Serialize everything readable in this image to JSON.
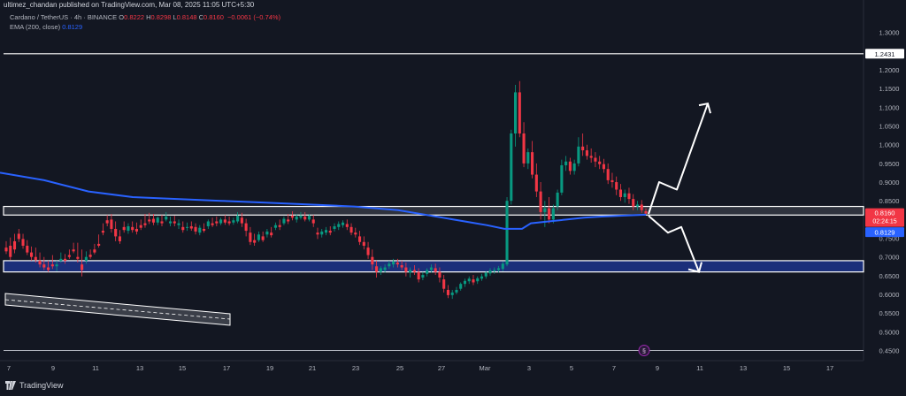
{
  "header": {
    "publisher_text": "ultimez_chandan published on TradingView.com, Mar 08, 2025 11:05 UTC+5:30"
  },
  "legend": {
    "symbol": "Cardano / TetherUS · 4h · BINANCE",
    "ohlc": [
      {
        "key": "O",
        "value": "0.8222"
      },
      {
        "key": "H",
        "value": "0.8298"
      },
      {
        "key": "L",
        "value": "0.8148"
      },
      {
        "key": "C",
        "value": "0.8160"
      }
    ],
    "change": "−0.0061 (−0.74%)",
    "ema_label": "EMA (200, close)",
    "ema_value": "0.8129"
  },
  "footer": {
    "brand": "TradingView"
  },
  "colors": {
    "background": "#131722",
    "up": "#089981",
    "down": "#f23645",
    "ema": "#2962ff",
    "zone_blue": "#1b2f7a",
    "white": "#ffffff"
  },
  "chart_data": {
    "type": "candlestick",
    "timeframe": "4h",
    "y_range": [
      0.43,
      1.33
    ],
    "y_ticks": [
      "1.3000",
      "1.2000",
      "1.1500",
      "1.1000",
      "1.0500",
      "1.0000",
      "0.9500",
      "0.9000",
      "0.8500",
      "0.7500",
      "0.7000",
      "0.6500",
      "0.6000",
      "0.5500",
      "0.5000",
      "0.4500"
    ],
    "x_ticks": [
      "7",
      "9",
      "11",
      "13",
      "15",
      "17",
      "19",
      "21",
      "23",
      "25",
      "27",
      "Mar",
      "3",
      "5",
      "7",
      "9",
      "11",
      "13",
      "15",
      "17"
    ],
    "price_labels": {
      "resistance_level": "1.2431",
      "last_price": "0.8160",
      "countdown": "02:24:15",
      "ema": "0.8129"
    },
    "levels": {
      "resistance": 1.2431,
      "bottom_line": 0.45,
      "supply_zone": [
        0.812,
        0.835
      ],
      "demand_zone": [
        0.66,
        0.69
      ]
    },
    "ema_path": [
      [
        0,
        0.925
      ],
      [
        50,
        0.905
      ],
      [
        100,
        0.875
      ],
      [
        150,
        0.86
      ],
      [
        200,
        0.855
      ],
      [
        250,
        0.85
      ],
      [
        300,
        0.845
      ],
      [
        350,
        0.84
      ],
      [
        400,
        0.835
      ],
      [
        450,
        0.825
      ],
      [
        500,
        0.805
      ],
      [
        550,
        0.785
      ],
      [
        570,
        0.775
      ],
      [
        590,
        0.775
      ],
      [
        600,
        0.79
      ],
      [
        620,
        0.795
      ],
      [
        640,
        0.8
      ],
      [
        660,
        0.805
      ],
      [
        680,
        0.808
      ],
      [
        700,
        0.81
      ],
      [
        730,
        0.8129
      ]
    ],
    "scenario_up": [
      [
        733,
        0.815
      ],
      [
        745,
        0.9
      ],
      [
        765,
        0.88
      ],
      [
        800,
        1.11
      ]
    ],
    "scenario_down": [
      [
        733,
        0.81
      ],
      [
        755,
        0.765
      ],
      [
        770,
        0.78
      ],
      [
        790,
        0.66
      ]
    ],
    "candles": [
      [
        0.725,
        0.742,
        0.715,
        0.708
      ],
      [
        0.73,
        0.752,
        0.7,
        0.692
      ],
      [
        0.742,
        0.762,
        0.72,
        0.71
      ],
      [
        0.762,
        0.775,
        0.748,
        0.74
      ],
      [
        0.748,
        0.762,
        0.73,
        0.722
      ],
      [
        0.73,
        0.745,
        0.712,
        0.705
      ],
      [
        0.712,
        0.728,
        0.7,
        0.69
      ],
      [
        0.7,
        0.725,
        0.692,
        0.685
      ],
      [
        0.69,
        0.712,
        0.68,
        0.672
      ],
      [
        0.68,
        0.7,
        0.672,
        0.665
      ],
      [
        0.672,
        0.69,
        0.665,
        0.66
      ],
      [
        0.68,
        0.705,
        0.675,
        0.668
      ],
      [
        0.675,
        0.69,
        0.68,
        0.662
      ],
      [
        0.69,
        0.712,
        0.695,
        0.685
      ],
      [
        0.695,
        0.708,
        0.69,
        0.682
      ],
      [
        0.705,
        0.72,
        0.7,
        0.695
      ],
      [
        0.72,
        0.738,
        0.715,
        0.71
      ],
      [
        0.7,
        0.738,
        0.695,
        0.685
      ],
      [
        0.68,
        0.72,
        0.665,
        0.648
      ],
      [
        0.69,
        0.715,
        0.7,
        0.682
      ],
      [
        0.706,
        0.72,
        0.7,
        0.695
      ],
      [
        0.72,
        0.735,
        0.712,
        0.707
      ],
      [
        0.735,
        0.76,
        0.73,
        0.725
      ],
      [
        0.77,
        0.79,
        0.765,
        0.758
      ],
      [
        0.798,
        0.812,
        0.79,
        0.782
      ],
      [
        0.8,
        0.815,
        0.775,
        0.765
      ],
      [
        0.775,
        0.795,
        0.755,
        0.742
      ],
      [
        0.755,
        0.772,
        0.742,
        0.735
      ],
      [
        0.78,
        0.795,
        0.772,
        0.765
      ],
      [
        0.77,
        0.79,
        0.782,
        0.762
      ],
      [
        0.78,
        0.795,
        0.772,
        0.765
      ],
      [
        0.775,
        0.792,
        0.768,
        0.76
      ],
      [
        0.785,
        0.8,
        0.778,
        0.772
      ],
      [
        0.79,
        0.815,
        0.785,
        0.778
      ],
      [
        0.8,
        0.818,
        0.795,
        0.788
      ],
      [
        0.802,
        0.815,
        0.792,
        0.785
      ],
      [
        0.792,
        0.808,
        0.805,
        0.785
      ],
      [
        0.795,
        0.812,
        0.79,
        0.782
      ],
      [
        0.8,
        0.82,
        0.808,
        0.795
      ],
      [
        0.79,
        0.808,
        0.795,
        0.782
      ],
      [
        0.795,
        0.81,
        0.79,
        0.782
      ],
      [
        0.785,
        0.8,
        0.79,
        0.775
      ],
      [
        0.78,
        0.795,
        0.772,
        0.765
      ],
      [
        0.778,
        0.792,
        0.78,
        0.77
      ],
      [
        0.782,
        0.795,
        0.776,
        0.77
      ],
      [
        0.78,
        0.79,
        0.768,
        0.76
      ],
      [
        0.765,
        0.785,
        0.778,
        0.758
      ],
      [
        0.775,
        0.79,
        0.77,
        0.765
      ],
      [
        0.782,
        0.8,
        0.795,
        0.775
      ],
      [
        0.79,
        0.805,
        0.785,
        0.78
      ],
      [
        0.795,
        0.808,
        0.79,
        0.782
      ],
      [
        0.79,
        0.805,
        0.8,
        0.785
      ],
      [
        0.8,
        0.812,
        0.792,
        0.786
      ],
      [
        0.795,
        0.808,
        0.79,
        0.784
      ],
      [
        0.792,
        0.805,
        0.798,
        0.786
      ],
      [
        0.795,
        0.82,
        0.81,
        0.79
      ],
      [
        0.805,
        0.818,
        0.79,
        0.78
      ],
      [
        0.79,
        0.802,
        0.77,
        0.755
      ],
      [
        0.765,
        0.78,
        0.74,
        0.732
      ],
      [
        0.745,
        0.762,
        0.738,
        0.73
      ],
      [
        0.745,
        0.768,
        0.76,
        0.74
      ],
      [
        0.755,
        0.768,
        0.745,
        0.74
      ],
      [
        0.76,
        0.775,
        0.768,
        0.752
      ],
      [
        0.765,
        0.78,
        0.758,
        0.752
      ],
      [
        0.778,
        0.792,
        0.785,
        0.772
      ],
      [
        0.785,
        0.8,
        0.78,
        0.772
      ],
      [
        0.79,
        0.808,
        0.802,
        0.785
      ],
      [
        0.8,
        0.815,
        0.795,
        0.788
      ],
      [
        0.81,
        0.822,
        0.805,
        0.798
      ],
      [
        0.8,
        0.815,
        0.808,
        0.792
      ],
      [
        0.805,
        0.82,
        0.81,
        0.8
      ],
      [
        0.808,
        0.82,
        0.8,
        0.795
      ],
      [
        0.8,
        0.815,
        0.81,
        0.795
      ],
      [
        0.8,
        0.812,
        0.79,
        0.78
      ],
      [
        0.765,
        0.778,
        0.76,
        0.748
      ],
      [
        0.76,
        0.775,
        0.768,
        0.752
      ],
      [
        0.765,
        0.78,
        0.772,
        0.758
      ],
      [
        0.77,
        0.782,
        0.765,
        0.758
      ],
      [
        0.775,
        0.79,
        0.782,
        0.768
      ],
      [
        0.78,
        0.795,
        0.788,
        0.772
      ],
      [
        0.785,
        0.798,
        0.792,
        0.778
      ],
      [
        0.788,
        0.8,
        0.78,
        0.772
      ],
      [
        0.78,
        0.79,
        0.765,
        0.758
      ],
      [
        0.765,
        0.778,
        0.76,
        0.752
      ],
      [
        0.755,
        0.77,
        0.74,
        0.732
      ],
      [
        0.74,
        0.755,
        0.73,
        0.72
      ],
      [
        0.725,
        0.74,
        0.705,
        0.695
      ],
      [
        0.7,
        0.72,
        0.68,
        0.665
      ],
      [
        0.675,
        0.69,
        0.66,
        0.645
      ],
      [
        0.66,
        0.675,
        0.67,
        0.652
      ],
      [
        0.665,
        0.68,
        0.672,
        0.658
      ],
      [
        0.675,
        0.69,
        0.682,
        0.668
      ],
      [
        0.68,
        0.695,
        0.688,
        0.672
      ],
      [
        0.685,
        0.695,
        0.68,
        0.672
      ],
      [
        0.678,
        0.69,
        0.672,
        0.665
      ],
      [
        0.672,
        0.685,
        0.66,
        0.648
      ],
      [
        0.658,
        0.672,
        0.665,
        0.645
      ],
      [
        0.665,
        0.678,
        0.66,
        0.652
      ],
      [
        0.66,
        0.67,
        0.64,
        0.632
      ],
      [
        0.645,
        0.66,
        0.652,
        0.638
      ],
      [
        0.655,
        0.67,
        0.665,
        0.648
      ],
      [
        0.665,
        0.68,
        0.672,
        0.658
      ],
      [
        0.67,
        0.682,
        0.66,
        0.652
      ],
      [
        0.66,
        0.672,
        0.645,
        0.632
      ],
      [
        0.64,
        0.652,
        0.615,
        0.605
      ],
      [
        0.612,
        0.625,
        0.598,
        0.59
      ],
      [
        0.598,
        0.612,
        0.605,
        0.588
      ],
      [
        0.605,
        0.62,
        0.612,
        0.6
      ],
      [
        0.615,
        0.632,
        0.628,
        0.61
      ],
      [
        0.628,
        0.642,
        0.636,
        0.62
      ],
      [
        0.635,
        0.648,
        0.642,
        0.628
      ],
      [
        0.64,
        0.652,
        0.632,
        0.625
      ],
      [
        0.635,
        0.648,
        0.643,
        0.628
      ],
      [
        0.642,
        0.655,
        0.648,
        0.636
      ],
      [
        0.648,
        0.662,
        0.658,
        0.642
      ],
      [
        0.656,
        0.67,
        0.664,
        0.65
      ],
      [
        0.662,
        0.672,
        0.665,
        0.655
      ],
      [
        0.665,
        0.676,
        0.67,
        0.658
      ],
      [
        0.668,
        0.688,
        0.682,
        0.662
      ],
      [
        0.68,
        0.86,
        0.85,
        0.675
      ],
      [
        0.85,
        1.04,
        1.03,
        0.84
      ],
      [
        1.03,
        1.16,
        1.14,
        0.995
      ],
      [
        1.14,
        1.17,
        1.03,
        1.02
      ],
      [
        1.03,
        1.06,
        0.95,
        0.94
      ],
      [
        0.95,
        0.99,
        0.98,
        0.935
      ],
      [
        0.98,
        1.01,
        0.92,
        0.91
      ],
      [
        0.92,
        0.95,
        0.875,
        0.86
      ],
      [
        0.875,
        0.9,
        0.82,
        0.8
      ],
      [
        0.82,
        0.85,
        0.83,
        0.78
      ],
      [
        0.83,
        0.86,
        0.8,
        0.79
      ],
      [
        0.8,
        0.84,
        0.83,
        0.79
      ],
      [
        0.835,
        0.88,
        0.872,
        0.825
      ],
      [
        0.872,
        0.96,
        0.945,
        0.865
      ],
      [
        0.945,
        0.97,
        0.955,
        0.93
      ],
      [
        0.955,
        0.965,
        0.93,
        0.92
      ],
      [
        0.93,
        0.96,
        0.95,
        0.92
      ],
      [
        0.95,
        1.02,
        0.995,
        0.942
      ],
      [
        0.995,
        1.03,
        0.985,
        0.97
      ],
      [
        0.985,
        1.0,
        0.97,
        0.96
      ],
      [
        0.97,
        0.99,
        0.965,
        0.952
      ],
      [
        0.965,
        0.98,
        0.955,
        0.94
      ],
      [
        0.955,
        0.97,
        0.948,
        0.935
      ],
      [
        0.948,
        0.962,
        0.935,
        0.925
      ],
      [
        0.935,
        0.95,
        0.905,
        0.895
      ],
      [
        0.905,
        0.925,
        0.9,
        0.885
      ],
      [
        0.9,
        0.915,
        0.88,
        0.865
      ],
      [
        0.88,
        0.895,
        0.86,
        0.85
      ],
      [
        0.86,
        0.88,
        0.87,
        0.845
      ],
      [
        0.87,
        0.885,
        0.855,
        0.842
      ],
      [
        0.855,
        0.868,
        0.835,
        0.825
      ],
      [
        0.835,
        0.85,
        0.84,
        0.825
      ],
      [
        0.84,
        0.852,
        0.825,
        0.818
      ],
      [
        0.8222,
        0.8298,
        0.816,
        0.8148
      ]
    ]
  }
}
